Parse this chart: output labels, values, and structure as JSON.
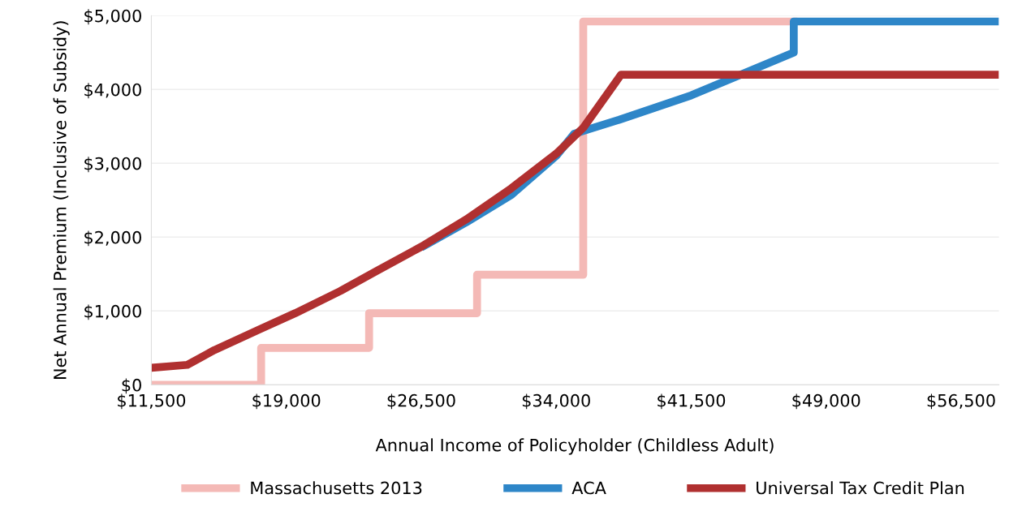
{
  "chart_data": {
    "type": "line",
    "xlabel": "Annual Income of Policyholder (Childless Adult)",
    "ylabel": "Net Annual Premium (Inclusive of Subsidy)",
    "xlim": [
      11500,
      58600
    ],
    "xticks": [
      {
        "value": 11500,
        "label": "$11,500"
      },
      {
        "value": 19000,
        "label": "$19,000"
      },
      {
        "value": 26500,
        "label": "$26,500"
      },
      {
        "value": 34000,
        "label": "$34,000"
      },
      {
        "value": 41500,
        "label": "$41,500"
      },
      {
        "value": 49000,
        "label": "$49,000"
      },
      {
        "value": 56500,
        "label": "$56,500"
      }
    ],
    "ylim": [
      0,
      5000
    ],
    "yticks": [
      {
        "value": 0,
        "label": "$0"
      },
      {
        "value": 1000,
        "label": "$1,000"
      },
      {
        "value": 2000,
        "label": "$2,000"
      },
      {
        "value": 3000,
        "label": "$3,000"
      },
      {
        "value": 4000,
        "label": "$4,000"
      },
      {
        "value": 5000,
        "label": "$5,000"
      }
    ],
    "grid": "y",
    "legend": "bottom",
    "marker": "none",
    "line_style": "solid",
    "series": [
      {
        "name": "Massachusetts 2013",
        "type": "step",
        "color": "#f4b9b6",
        "x": [
          11500,
          17600,
          23600,
          29600,
          35500,
          47400
        ],
        "values": [
          0,
          500,
          970,
          1490,
          4920,
          4920
        ]
      },
      {
        "name": "ACA",
        "color": "#2e86c8",
        "x": [
          26500,
          29000,
          31500,
          34000,
          35000,
          37500,
          41500,
          47200,
          47200,
          58600
        ],
        "values": [
          1860,
          2200,
          2570,
          3100,
          3400,
          3590,
          3920,
          4500,
          4920,
          4920
        ]
      },
      {
        "name": "Universal Tax Credit Plan",
        "color": "#b03030",
        "x": [
          11500,
          13500,
          15000,
          17500,
          19500,
          22000,
          24000,
          26500,
          29000,
          31500,
          34000,
          35500,
          37600,
          58600
        ],
        "values": [
          230,
          270,
          470,
          750,
          970,
          1270,
          1540,
          1870,
          2240,
          2660,
          3130,
          3480,
          4200,
          4200
        ]
      }
    ]
  }
}
